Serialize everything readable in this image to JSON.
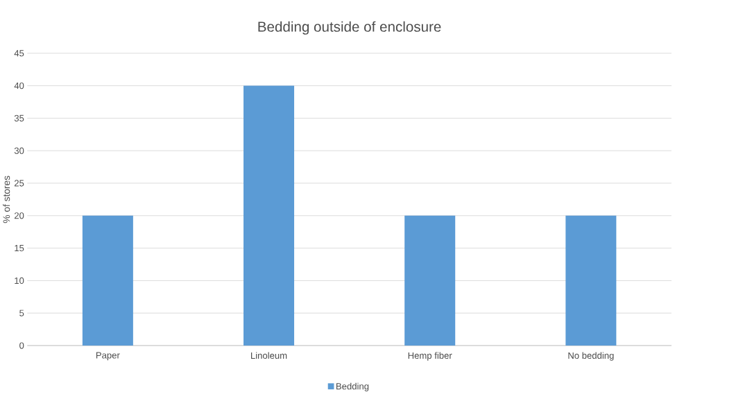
{
  "chart_data": {
    "type": "bar",
    "title": "Bedding outside of enclosure",
    "ylabel": "% of stores",
    "categories": [
      "Paper",
      "Linoleum",
      "Hemp fiber",
      "No bedding"
    ],
    "series": [
      {
        "name": "Bedding",
        "color": "#5b9bd5",
        "values": [
          20,
          40,
          20,
          20
        ]
      }
    ],
    "ylim": [
      0,
      45
    ],
    "yticks": [
      0,
      5,
      10,
      15,
      20,
      25,
      30,
      35,
      40,
      45
    ],
    "grid": "y",
    "legend": "bottom"
  }
}
